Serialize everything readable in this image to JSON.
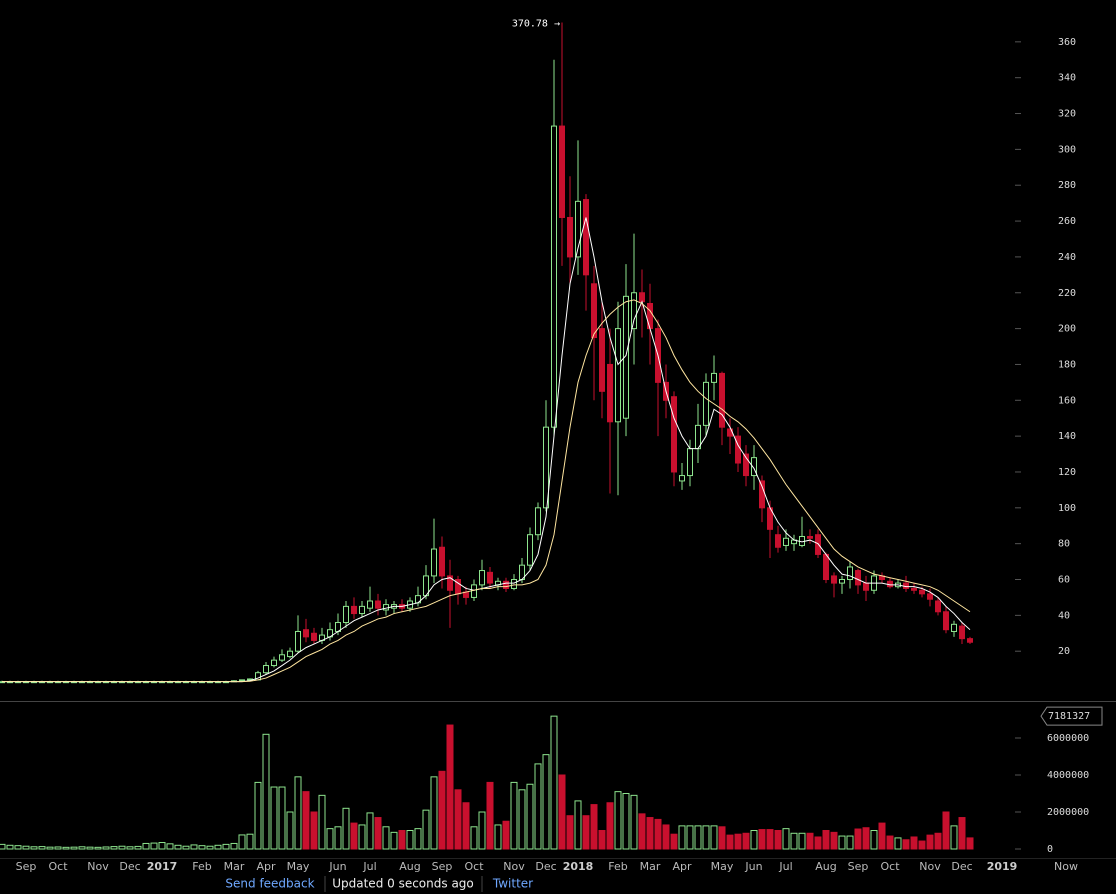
{
  "chart_data": {
    "type": "candlestick",
    "categories": [
      null,
      null,
      null,
      "Sep",
      null,
      null,
      null,
      "Oct",
      null,
      null,
      null,
      null,
      "Nov",
      null,
      null,
      null,
      "Dec",
      null,
      null,
      null,
      "2017",
      null,
      null,
      null,
      null,
      "Feb",
      null,
      null,
      null,
      "Mar",
      null,
      null,
      null,
      "Apr",
      null,
      null,
      null,
      "May",
      null,
      null,
      null,
      null,
      "Jun",
      null,
      null,
      null,
      "Jul",
      null,
      null,
      null,
      null,
      "Aug",
      null,
      null,
      null,
      "Sep",
      null,
      null,
      null,
      "Oct",
      null,
      null,
      null,
      null,
      "Nov",
      null,
      null,
      null,
      "Dec",
      null,
      null,
      null,
      "2018",
      null,
      null,
      null,
      null,
      "Feb",
      null,
      null,
      null,
      "Mar",
      null,
      null,
      null,
      "Apr",
      null,
      null,
      null,
      null,
      "May",
      null,
      null,
      null,
      "Jun",
      null,
      null,
      null,
      "Jul",
      null,
      null,
      null,
      null,
      "Aug",
      null,
      null,
      null,
      "Sep",
      null,
      null,
      null,
      "Oct",
      null,
      null,
      null,
      null,
      "Nov",
      null,
      null,
      null,
      "Dec",
      null,
      null,
      null,
      null,
      "2019",
      null,
      null,
      null,
      null,
      null,
      null,
      null,
      "Now"
    ],
    "open": [
      3,
      3,
      3,
      3,
      3,
      3,
      3,
      3,
      3,
      3,
      3,
      3,
      3,
      3,
      3,
      3,
      3,
      3,
      3,
      3,
      3,
      3,
      3,
      3,
      3,
      3,
      3,
      3,
      3,
      3,
      3.5,
      4,
      4,
      8,
      12,
      15,
      17,
      20,
      32,
      30,
      26,
      28,
      31,
      36,
      45,
      41,
      44,
      48,
      43,
      44,
      46,
      44,
      47,
      51,
      62,
      78,
      62,
      60,
      53,
      50,
      57,
      64,
      57,
      59,
      55,
      60,
      68,
      85,
      100,
      145,
      313,
      262,
      240,
      272,
      225,
      200,
      180,
      148,
      150,
      200,
      220,
      214,
      200,
      170,
      162,
      115,
      118,
      133,
      146,
      170,
      175,
      144,
      140,
      130,
      118,
      115,
      100,
      85,
      79,
      80,
      79,
      84,
      85,
      74,
      62,
      58,
      60,
      65,
      58,
      54,
      62,
      59,
      56,
      58,
      55,
      54,
      52,
      48,
      42,
      31,
      34,
      27,
      null,
      null,
      null,
      null,
      null,
      null,
      null,
      null,
      null,
      null,
      null,
      null
    ],
    "high": [
      3.5,
      3.5,
      3.5,
      3.5,
      3.5,
      3.5,
      3.5,
      3.5,
      3.5,
      3.5,
      3.5,
      3.5,
      3.5,
      3.5,
      3.5,
      3.5,
      3.5,
      3.5,
      3.5,
      3.5,
      3.5,
      3.5,
      3.5,
      3.5,
      3.5,
      3.5,
      3.5,
      3.5,
      3.5,
      3.8,
      4.2,
      4.8,
      9,
      14,
      17,
      21,
      22,
      40,
      38,
      33,
      33,
      36,
      41,
      48,
      50,
      48,
      56,
      52,
      49,
      48,
      49,
      50,
      56,
      68,
      94,
      84,
      71,
      62,
      56,
      60,
      71,
      67,
      61,
      61,
      63,
      72,
      89,
      103,
      160,
      350,
      370.78,
      285,
      305,
      275,
      235,
      215,
      200,
      215,
      236,
      253,
      233,
      225,
      205,
      180,
      165,
      125,
      138,
      158,
      175,
      185,
      176,
      150,
      145,
      135,
      135,
      118,
      104,
      90,
      88,
      85,
      95,
      88,
      88,
      75,
      64,
      62,
      70,
      66,
      62,
      65,
      64,
      61,
      60,
      62,
      58,
      56,
      55,
      50,
      45,
      37,
      36,
      28,
      null,
      null,
      null,
      null,
      null,
      null,
      null,
      null,
      null,
      null,
      null,
      null
    ],
    "low": [
      2.5,
      2.5,
      2.5,
      2.5,
      2.5,
      2.5,
      2.5,
      2.5,
      2.5,
      2.5,
      2.5,
      2.5,
      2.5,
      2.5,
      2.5,
      2.5,
      2.5,
      2.5,
      2.5,
      2.5,
      2.5,
      2.5,
      2.5,
      2.5,
      2.5,
      2.5,
      2.5,
      2.5,
      2.5,
      2.8,
      3.2,
      3.8,
      4,
      7,
      11,
      14,
      16,
      19,
      25,
      24,
      24,
      26,
      29,
      33,
      38,
      39,
      42,
      40,
      40,
      41,
      42,
      42,
      45,
      49,
      58,
      55,
      33,
      46,
      46,
      48,
      54,
      55,
      54,
      53,
      54,
      58,
      65,
      82,
      98,
      140,
      235,
      225,
      230,
      210,
      160,
      150,
      108,
      107,
      140,
      180,
      195,
      180,
      140,
      150,
      112,
      110,
      112,
      125,
      140,
      160,
      135,
      130,
      120,
      112,
      110,
      92,
      72,
      75,
      76,
      76,
      78,
      80,
      72,
      58,
      50,
      52,
      55,
      52,
      48,
      52,
      58,
      55,
      55,
      53,
      52,
      50,
      45,
      40,
      30,
      28,
      24,
      24,
      null,
      null,
      null,
      null,
      null,
      null,
      null,
      null,
      null,
      null,
      null,
      null
    ],
    "close": [
      3,
      3,
      3,
      3,
      3,
      3,
      3,
      3,
      3,
      3,
      3,
      3,
      3,
      3,
      3,
      3,
      3,
      3,
      3,
      3,
      3,
      3,
      3,
      3,
      3,
      3,
      3,
      3,
      3,
      3.5,
      4,
      4.5,
      8,
      12,
      15,
      18,
      20,
      31,
      28,
      26,
      29,
      32,
      36,
      45,
      41,
      45,
      48,
      44,
      46,
      46,
      44,
      48,
      51,
      62,
      77,
      62,
      54,
      52,
      50,
      57,
      65,
      58,
      59,
      55,
      60,
      68,
      85,
      100,
      145,
      313,
      262,
      240,
      271,
      230,
      195,
      165,
      148,
      200,
      218,
      220,
      215,
      200,
      170,
      160,
      120,
      118,
      133,
      146,
      170,
      175,
      145,
      140,
      125,
      118,
      128,
      100,
      88,
      78,
      83,
      82,
      84,
      83,
      74,
      60,
      58,
      60,
      67,
      57,
      54,
      62,
      60,
      56,
      58,
      55,
      54,
      52,
      49,
      42,
      32,
      35,
      27,
      25,
      null,
      null,
      null,
      null,
      null,
      null,
      null,
      null,
      null,
      null,
      null,
      null
    ],
    "volume": [
      250000,
      200000,
      180000,
      150000,
      120000,
      130000,
      100000,
      110000,
      90000,
      100000,
      120000,
      100000,
      90000,
      110000,
      130000,
      150000,
      120000,
      140000,
      300000,
      320000,
      350000,
      280000,
      200000,
      150000,
      220000,
      180000,
      150000,
      200000,
      250000,
      300000,
      760000,
      800000,
      3600000,
      6200000,
      3350000,
      3350000,
      2000000,
      3900000,
      3100000,
      2000000,
      2900000,
      1100000,
      1200000,
      2200000,
      1400000,
      1300000,
      1950000,
      1700000,
      1200000,
      900000,
      1000000,
      1000000,
      1100000,
      2100000,
      3900000,
      4200000,
      6700000,
      3200000,
      2500000,
      1200000,
      2000000,
      3600000,
      1300000,
      1500000,
      3600000,
      3200000,
      3500000,
      4600000,
      5100000,
      7181327,
      4000000,
      1800000,
      2600000,
      1800000,
      2400000,
      1000000,
      2500000,
      3100000,
      3000000,
      2900000,
      1900000,
      1700000,
      1600000,
      1300000,
      800000,
      1250000,
      1250000,
      1250000,
      1250000,
      1250000,
      1200000,
      750000,
      800000,
      850000,
      1000000,
      1050000,
      1050000,
      1000000,
      1100000,
      850000,
      850000,
      850000,
      650000,
      1000000,
      900000,
      700000,
      700000,
      1080000,
      1150000,
      1000000,
      1400000,
      700000,
      600000,
      500000,
      650000,
      430000,
      750000,
      850000,
      2000000,
      1250000,
      1700000,
      600000,
      null,
      null,
      null,
      null,
      null,
      null,
      null,
      null,
      null,
      null,
      null,
      null
    ],
    "ma_lines": [
      {
        "color": "#ffffff",
        "values": [
          3,
          3,
          3,
          3,
          3,
          3,
          3,
          3,
          3,
          3,
          3,
          3,
          3,
          3,
          3,
          3,
          3,
          3,
          3,
          3,
          3,
          3,
          3,
          3,
          3,
          3,
          3,
          3,
          3,
          3,
          3,
          3.5,
          5,
          7,
          9,
          12,
          15,
          19,
          22,
          24,
          26,
          28,
          31,
          34,
          37,
          39,
          41,
          43,
          44,
          45,
          45,
          46,
          47,
          51,
          57,
          60,
          61,
          58,
          55,
          54,
          55,
          56,
          57,
          58,
          58,
          60,
          65,
          74,
          95,
          140,
          185,
          225,
          245,
          262,
          240,
          215,
          195,
          180,
          185,
          205,
          215,
          200,
          185,
          165,
          150,
          140,
          133,
          133,
          140,
          155,
          152,
          145,
          135,
          128,
          122,
          112,
          100,
          92,
          86,
          82,
          81,
          82,
          80,
          74,
          68,
          63,
          62,
          60,
          58,
          58,
          58,
          57,
          57,
          56,
          56,
          55,
          53,
          50,
          45,
          41,
          36,
          32,
          null,
          null,
          null,
          null,
          null,
          null,
          null,
          null,
          null,
          null,
          null,
          null
        ]
      },
      {
        "color": "#ffe6a0",
        "values": [
          3,
          3,
          3,
          3,
          3,
          3,
          3,
          3,
          3,
          3,
          3,
          3,
          3,
          3,
          3,
          3,
          3,
          3,
          3,
          3,
          3,
          3,
          3,
          3,
          3,
          3,
          3,
          3,
          3,
          3,
          3,
          3.2,
          4,
          5,
          7,
          9,
          11,
          14,
          17,
          19,
          21,
          24,
          26,
          29,
          31,
          34,
          36,
          38,
          39,
          41,
          42,
          43,
          44,
          45,
          47,
          49,
          51,
          52,
          53,
          54,
          55,
          55,
          56,
          56,
          57,
          57,
          58,
          60,
          68,
          85,
          115,
          145,
          170,
          185,
          197,
          203,
          208,
          212,
          215,
          216,
          214,
          210,
          203,
          195,
          185,
          177,
          170,
          165,
          161,
          158,
          155,
          151,
          148,
          144,
          139,
          133,
          127,
          120,
          113,
          107,
          101,
          95,
          89,
          83,
          77,
          73,
          70,
          67,
          65,
          63,
          62,
          61,
          60,
          59,
          58,
          57,
          56,
          54,
          51,
          48,
          45,
          42,
          null,
          null,
          null,
          null,
          null,
          null,
          null,
          null,
          null,
          null,
          null,
          null
        ]
      }
    ],
    "up_color": "#8ee58e",
    "down_color": "#c8102e",
    "ylim": [
      -5,
      380
    ],
    "yticks": [
      20,
      40,
      60,
      80,
      100,
      120,
      140,
      160,
      180,
      200,
      220,
      240,
      260,
      280,
      300,
      320,
      340,
      360
    ],
    "volume_ylim": [
      0,
      8000000
    ],
    "volume_yticks": [
      0,
      2000000,
      4000000,
      6000000
    ],
    "annotation": "370.78 →"
  },
  "footer": {
    "links": [
      "Send feedback",
      "Twitter"
    ],
    "status": "Updated 0 seconds ago"
  }
}
